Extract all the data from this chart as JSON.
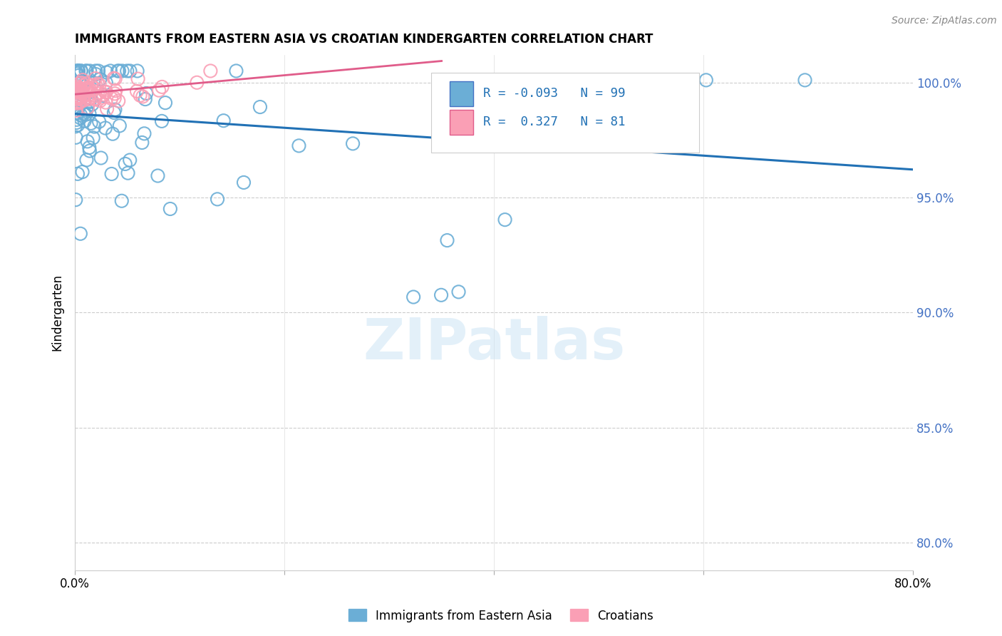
{
  "title": "IMMIGRANTS FROM EASTERN ASIA VS CROATIAN KINDERGARTEN CORRELATION CHART",
  "source": "Source: ZipAtlas.com",
  "ylabel": "Kindergarten",
  "ytick_labels": [
    "80.0%",
    "85.0%",
    "90.0%",
    "95.0%",
    "100.0%"
  ],
  "ytick_values": [
    0.8,
    0.85,
    0.9,
    0.95,
    1.0
  ],
  "xlim": [
    0.0,
    0.8
  ],
  "ylim": [
    0.788,
    1.012
  ],
  "blue_color": "#6baed6",
  "pink_color": "#fa9fb5",
  "blue_line_color": "#2171b5",
  "pink_line_color": "#e05c8a",
  "legend_blue_text": "R = -0.093   N = 99",
  "legend_pink_text": "R =  0.327   N = 81",
  "watermark_text": "ZIPatlas",
  "blue_N": 99,
  "pink_N": 81,
  "blue_seed": 42,
  "pink_seed": 7
}
